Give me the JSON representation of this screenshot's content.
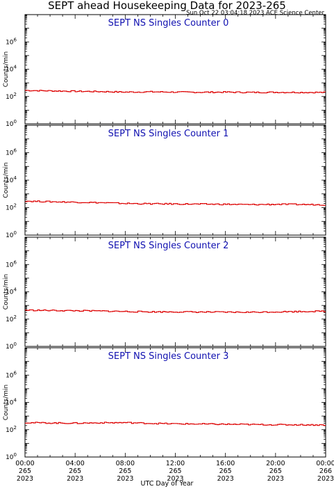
{
  "header": {
    "title": "SEPT ahead Housekeeping Data for 2023-265",
    "subtitle": "Sun Oct 22 03:04:18 2023 ACE Science Center"
  },
  "colors": {
    "series": "#dd0000",
    "panel_title": "#1010b0",
    "axis": "#000000"
  },
  "chart_data": [
    {
      "type": "line",
      "title": "SEPT NS Singles Counter 0",
      "ylabel": "Counts/min",
      "xlabel": "",
      "y_scale": "log",
      "ylim": [
        1,
        100000000
      ],
      "y_ticks": [
        {
          "value": 1,
          "label": "10^0"
        },
        {
          "value": 100,
          "label": "10^2"
        },
        {
          "value": 10000,
          "label": "10^4"
        },
        {
          "value": 1000000,
          "label": "10^6"
        }
      ],
      "xlim": [
        "265 00:00",
        "266 00:00"
      ],
      "series": [
        {
          "values": [
            {
              "x": "00:00",
              "y": 280
            },
            {
              "x": "02:00",
              "y": 260
            },
            {
              "x": "04:00",
              "y": 240
            },
            {
              "x": "06:00",
              "y": 230
            },
            {
              "x": "08:00",
              "y": 210
            },
            {
              "x": "10:00",
              "y": 220
            },
            {
              "x": "12:00",
              "y": 210
            },
            {
              "x": "14:00",
              "y": 205
            },
            {
              "x": "16:00",
              "y": 210
            },
            {
              "x": "18:00",
              "y": 200
            },
            {
              "x": "20:00",
              "y": 205
            },
            {
              "x": "22:00",
              "y": 200
            },
            {
              "x": "24:00",
              "y": 200
            }
          ]
        }
      ]
    },
    {
      "type": "line",
      "title": "SEPT NS Singles Counter 1",
      "ylabel": "Counts/min",
      "xlabel": "",
      "y_scale": "log",
      "ylim": [
        1,
        100000000
      ],
      "y_ticks": [
        {
          "value": 1,
          "label": "10^0"
        },
        {
          "value": 100,
          "label": "10^2"
        },
        {
          "value": 10000,
          "label": "10^4"
        },
        {
          "value": 1000000,
          "label": "10^6"
        }
      ],
      "xlim": [
        "265 00:00",
        "266 00:00"
      ],
      "series": [
        {
          "values": [
            {
              "x": "00:00",
              "y": 300
            },
            {
              "x": "02:00",
              "y": 270
            },
            {
              "x": "04:00",
              "y": 250
            },
            {
              "x": "06:00",
              "y": 230
            },
            {
              "x": "08:00",
              "y": 200
            },
            {
              "x": "10:00",
              "y": 190
            },
            {
              "x": "12:00",
              "y": 185
            },
            {
              "x": "14:00",
              "y": 180
            },
            {
              "x": "16:00",
              "y": 175
            },
            {
              "x": "18:00",
              "y": 165
            },
            {
              "x": "20:00",
              "y": 175
            },
            {
              "x": "22:00",
              "y": 170
            },
            {
              "x": "24:00",
              "y": 160
            }
          ]
        }
      ]
    },
    {
      "type": "line",
      "title": "SEPT NS Singles Counter 2",
      "ylabel": "Counts/min",
      "xlabel": "",
      "y_scale": "log",
      "ylim": [
        1,
        100000000
      ],
      "y_ticks": [
        {
          "value": 1,
          "label": "10^0"
        },
        {
          "value": 100,
          "label": "10^2"
        },
        {
          "value": 10000,
          "label": "10^4"
        },
        {
          "value": 1000000,
          "label": "10^6"
        }
      ],
      "xlim": [
        "265 00:00",
        "266 00:00"
      ],
      "series": [
        {
          "values": [
            {
              "x": "00:00",
              "y": 450
            },
            {
              "x": "02:00",
              "y": 430
            },
            {
              "x": "04:00",
              "y": 410
            },
            {
              "x": "06:00",
              "y": 390
            },
            {
              "x": "08:00",
              "y": 360
            },
            {
              "x": "10:00",
              "y": 340
            },
            {
              "x": "12:00",
              "y": 340
            },
            {
              "x": "14:00",
              "y": 330
            },
            {
              "x": "16:00",
              "y": 320
            },
            {
              "x": "18:00",
              "y": 320
            },
            {
              "x": "20:00",
              "y": 340
            },
            {
              "x": "22:00",
              "y": 360
            },
            {
              "x": "24:00",
              "y": 380
            }
          ]
        }
      ]
    },
    {
      "type": "line",
      "title": "SEPT NS Singles Counter 3",
      "ylabel": "Counts/min",
      "xlabel": "UTC Day of Year",
      "y_scale": "log",
      "ylim": [
        1,
        100000000
      ],
      "y_ticks": [
        {
          "value": 1,
          "label": "10^0"
        },
        {
          "value": 100,
          "label": "10^2"
        },
        {
          "value": 10000,
          "label": "10^4"
        },
        {
          "value": 1000000,
          "label": "10^6"
        }
      ],
      "xlim": [
        "265 00:00",
        "266 00:00"
      ],
      "x_ticks": [
        {
          "time": "00:00",
          "day": "265",
          "year": "2023"
        },
        {
          "time": "04:00",
          "day": "265",
          "year": "2023"
        },
        {
          "time": "08:00",
          "day": "265",
          "year": "2023"
        },
        {
          "time": "12:00",
          "day": "265",
          "year": "2023"
        },
        {
          "time": "16:00",
          "day": "265",
          "year": "2023"
        },
        {
          "time": "20:00",
          "day": "265",
          "year": "2023"
        },
        {
          "time": "00:00",
          "day": "266",
          "year": "2023"
        }
      ],
      "series": [
        {
          "values": [
            {
              "x": "00:00",
              "y": 330
            },
            {
              "x": "02:00",
              "y": 310
            },
            {
              "x": "04:00",
              "y": 300
            },
            {
              "x": "06:00",
              "y": 320
            },
            {
              "x": "08:00",
              "y": 330
            },
            {
              "x": "10:00",
              "y": 290
            },
            {
              "x": "12:00",
              "y": 270
            },
            {
              "x": "14:00",
              "y": 260
            },
            {
              "x": "16:00",
              "y": 250
            },
            {
              "x": "18:00",
              "y": 240
            },
            {
              "x": "20:00",
              "y": 230
            },
            {
              "x": "22:00",
              "y": 230
            },
            {
              "x": "24:00",
              "y": 220
            }
          ]
        }
      ]
    }
  ]
}
